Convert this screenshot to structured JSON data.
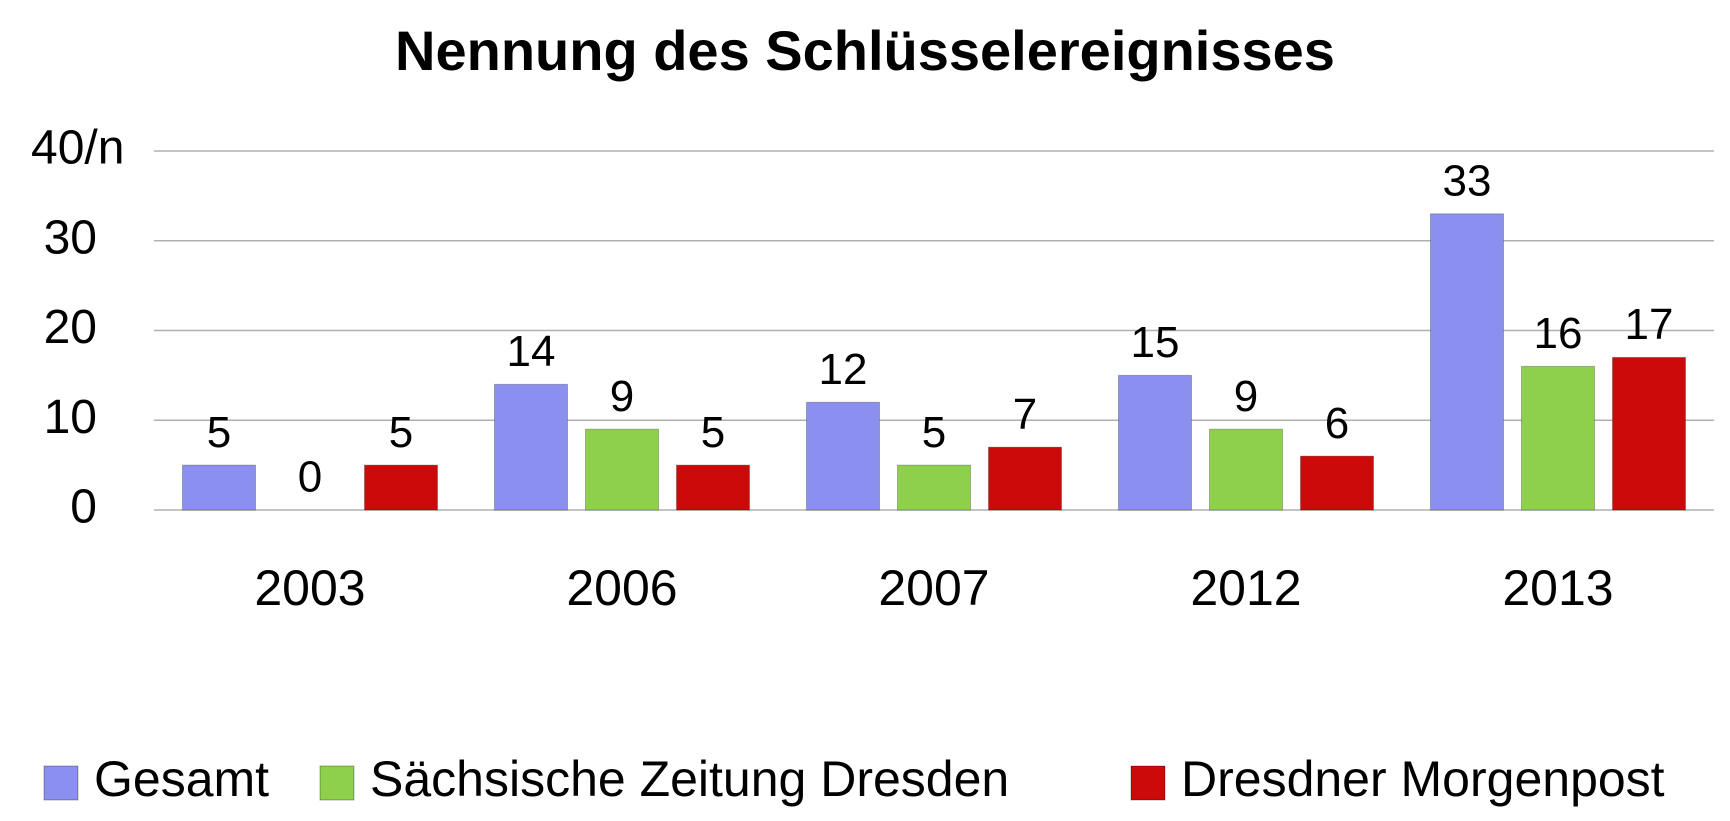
{
  "chart_data": {
    "type": "bar",
    "title": "Nennung des Schlüsselereignisses",
    "categories": [
      "2003",
      "2006",
      "2007",
      "2012",
      "2013"
    ],
    "series": [
      {
        "name": "Gesamt",
        "color": "#8b8ff0",
        "values": [
          5,
          14,
          12,
          15,
          33
        ]
      },
      {
        "name": "Sächsische Zeitung Dresden",
        "color": "#8ed04c",
        "values": [
          0,
          9,
          5,
          9,
          16
        ]
      },
      {
        "name": "Dresdner Morgenpost",
        "color": "#cc0a0a",
        "values": [
          5,
          5,
          7,
          6,
          17
        ]
      }
    ],
    "ylim": [
      0,
      40
    ],
    "yticks": [
      0,
      10,
      20,
      30,
      {
        "value": 40,
        "label": "40/n"
      }
    ],
    "grid": true,
    "legend": "bottom"
  }
}
